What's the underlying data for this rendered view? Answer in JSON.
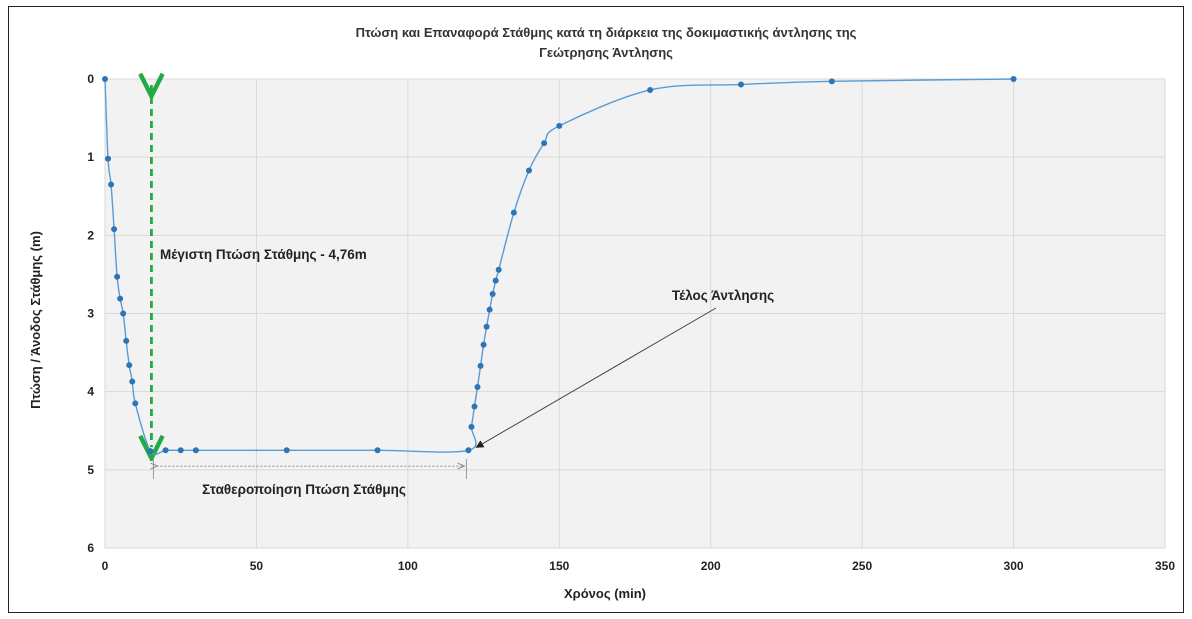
{
  "chart_data": {
    "type": "scatter",
    "title_line1": "Πτώση και Επαναφορά Στάθμης κατά τη διάρκεια  της δοκιμαστικής άντλησης της",
    "title_line2": "Γεώτρησης Άντλησης",
    "xlabel": "Χρόνος (min)",
    "ylabel": "Πτώση / Άνοδος Στάθμης (m)",
    "xlim": [
      0,
      350
    ],
    "ylim": [
      0,
      6
    ],
    "y_inverted": true,
    "xticks": [
      0,
      50,
      100,
      150,
      200,
      250,
      300,
      350
    ],
    "yticks": [
      0,
      1,
      2,
      3,
      4,
      5,
      6
    ],
    "grid": true,
    "smooth_line": true,
    "series_color": "#5b9bd5",
    "marker_color": "#2e75b6",
    "points": [
      {
        "x": 0,
        "y": 0
      },
      {
        "x": 1,
        "y": 1.02
      },
      {
        "x": 2,
        "y": 1.35
      },
      {
        "x": 3,
        "y": 1.92
      },
      {
        "x": 4,
        "y": 2.53
      },
      {
        "x": 5,
        "y": 2.81
      },
      {
        "x": 6,
        "y": 3.0
      },
      {
        "x": 7,
        "y": 3.35
      },
      {
        "x": 8,
        "y": 3.66
      },
      {
        "x": 9,
        "y": 3.87
      },
      {
        "x": 10,
        "y": 4.15
      },
      {
        "x": 15,
        "y": 4.76
      },
      {
        "x": 20,
        "y": 4.75
      },
      {
        "x": 25,
        "y": 4.75
      },
      {
        "x": 30,
        "y": 4.75
      },
      {
        "x": 60,
        "y": 4.75
      },
      {
        "x": 90,
        "y": 4.75
      },
      {
        "x": 120,
        "y": 4.75
      },
      {
        "x": 121,
        "y": 4.45
      },
      {
        "x": 122,
        "y": 4.19
      },
      {
        "x": 123,
        "y": 3.94
      },
      {
        "x": 124,
        "y": 3.67
      },
      {
        "x": 125,
        "y": 3.4
      },
      {
        "x": 126,
        "y": 3.17
      },
      {
        "x": 127,
        "y": 2.95
      },
      {
        "x": 128,
        "y": 2.75
      },
      {
        "x": 129,
        "y": 2.58
      },
      {
        "x": 130,
        "y": 2.44
      },
      {
        "x": 135,
        "y": 1.71
      },
      {
        "x": 140,
        "y": 1.17
      },
      {
        "x": 145,
        "y": 0.82
      },
      {
        "x": 150,
        "y": 0.6
      },
      {
        "x": 180,
        "y": 0.14
      },
      {
        "x": 210,
        "y": 0.07
      },
      {
        "x": 240,
        "y": 0.03
      },
      {
        "x": 300,
        "y": 0.0
      }
    ],
    "annotations": {
      "max_drawdown": {
        "text": "Μέγιστη Πτώση Στάθμης - 4,76m",
        "x": 15,
        "y_from": 0,
        "y_to": 4.76,
        "color": "#22aa44"
      },
      "stabilization": {
        "text": "Σταθεροποίηση Πτώση Στάθμης",
        "x_from": 15,
        "x_to": 120
      },
      "pump_end": {
        "text": "Τέλος Άντλησης",
        "x": 120,
        "y": 4.75
      }
    }
  }
}
